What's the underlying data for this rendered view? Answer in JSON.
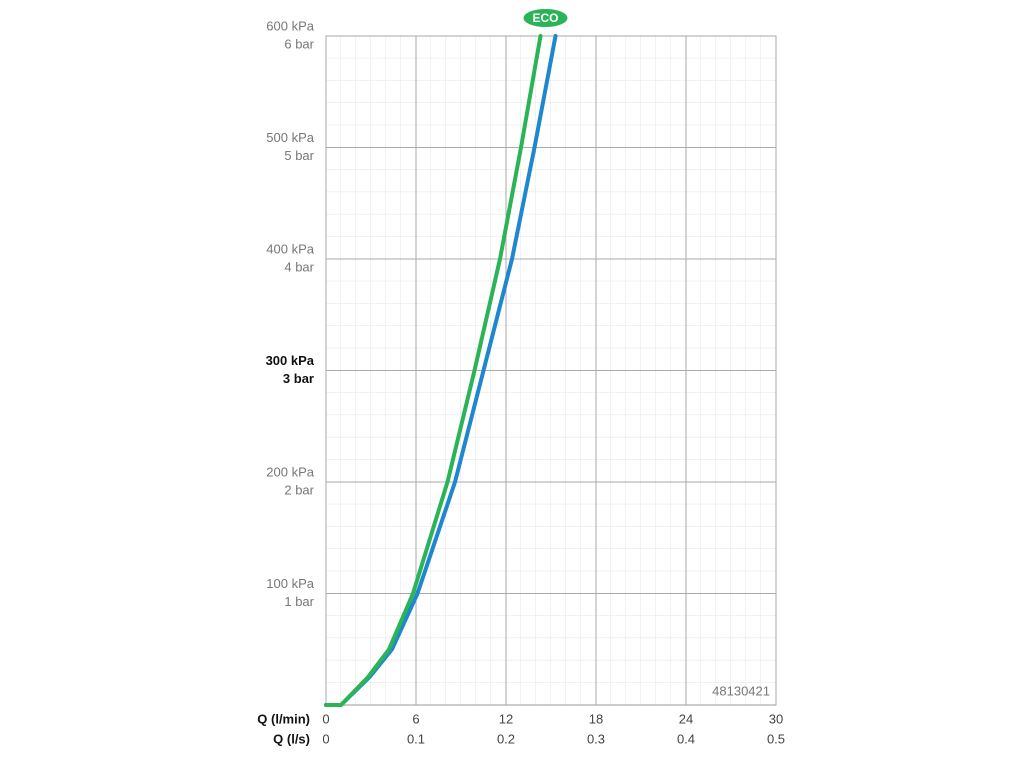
{
  "chart_data": {
    "type": "line",
    "x_label": "Q (l/min)",
    "x2_label": "Q (l/s)",
    "xlim": [
      0,
      30
    ],
    "xticks": [
      0,
      6,
      12,
      18,
      24,
      30
    ],
    "x2lim": [
      0,
      0.5
    ],
    "x2ticks": [
      0,
      0.1,
      0.2,
      0.3,
      0.4,
      0.5
    ],
    "ylim": [
      0,
      600
    ],
    "yticks": [
      {
        "value": 100,
        "label": "100 kPa"
      },
      {
        "value": 200,
        "label": "200 kPa"
      },
      {
        "value": 300,
        "label": "300 kPa"
      },
      {
        "value": 400,
        "label": "400 kPa"
      },
      {
        "value": 500,
        "label": "500 kPa"
      },
      {
        "value": 600,
        "label": "600 kPa"
      }
    ],
    "y2lim": [
      0,
      6
    ],
    "y2ticks": [
      {
        "value": 1,
        "label": "1 bar"
      },
      {
        "value": 2,
        "label": "2 bar"
      },
      {
        "value": 3,
        "label": "3 bar"
      },
      {
        "value": 4,
        "label": "4 bar"
      },
      {
        "value": 5,
        "label": "5 bar"
      },
      {
        "value": 6,
        "label": "6 bar"
      }
    ],
    "emphasized_ytick": 300,
    "grid": true,
    "code": "48130421",
    "series": [
      {
        "name": "ECO",
        "color": "#2bb457",
        "x": [
          0,
          1,
          2.8,
          4.2,
          5.8,
          8.1,
          9.9,
          11.6,
          13.0,
          14.3
        ],
        "values": [
          0,
          0,
          25,
          50,
          100,
          200,
          300,
          400,
          500,
          600
        ]
      },
      {
        "color": "#1f86d0",
        "x": [
          0,
          1,
          2.9,
          4.4,
          6.1,
          8.6,
          10.5,
          12.4,
          13.9,
          15.3
        ],
        "values": [
          0,
          0,
          25,
          50,
          100,
          200,
          300,
          400,
          500,
          600
        ]
      }
    ]
  }
}
